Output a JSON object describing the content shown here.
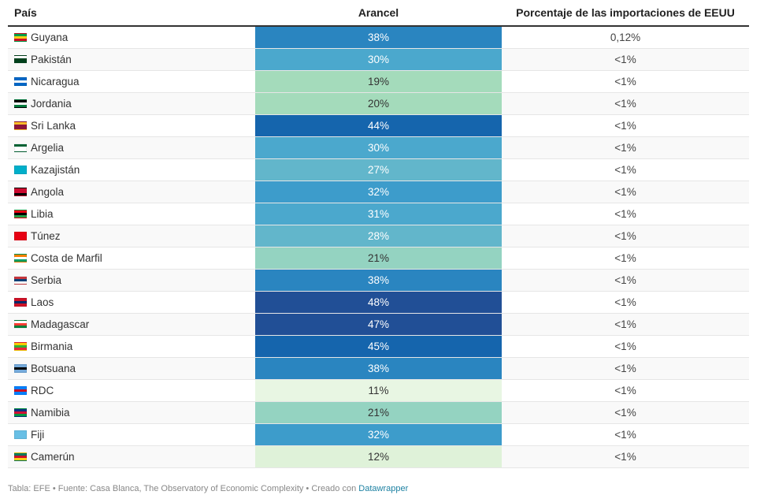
{
  "chart_data": {
    "type": "table",
    "columns": [
      "País",
      "Arancel",
      "Porcentaje de las importaciones de EEUU"
    ],
    "rows": [
      {
        "country": "Guyana",
        "tariff": "38%",
        "value": 38,
        "share": "0,12%",
        "flag_colors": [
          "#009e49",
          "#fcd116",
          "#ce1126"
        ]
      },
      {
        "country": "Pakistán",
        "tariff": "30%",
        "value": 30,
        "share": "<1%",
        "flag_colors": [
          "#ffffff",
          "#01411c",
          "#01411c"
        ]
      },
      {
        "country": "Nicaragua",
        "tariff": "19%",
        "value": 19,
        "share": "<1%",
        "flag_colors": [
          "#0067c6",
          "#ffffff",
          "#0067c6"
        ]
      },
      {
        "country": "Jordania",
        "tariff": "20%",
        "value": 20,
        "share": "<1%",
        "flag_colors": [
          "#000000",
          "#ffffff",
          "#007a3d"
        ]
      },
      {
        "country": "Sri Lanka",
        "tariff": "44%",
        "value": 44,
        "share": "<1%",
        "flag_colors": [
          "#ffbe29",
          "#8d153a",
          "#8d153a"
        ]
      },
      {
        "country": "Argelia",
        "tariff": "30%",
        "value": 30,
        "share": "<1%",
        "flag_colors": [
          "#006233",
          "#ffffff",
          "#ffffff"
        ]
      },
      {
        "country": "Kazajistán",
        "tariff": "27%",
        "value": 27,
        "share": "<1%",
        "flag_colors": [
          "#00afca",
          "#00afca",
          "#00afca"
        ]
      },
      {
        "country": "Angola",
        "tariff": "32%",
        "value": 32,
        "share": "<1%",
        "flag_colors": [
          "#cc092f",
          "#cc092f",
          "#000000"
        ]
      },
      {
        "country": "Libia",
        "tariff": "31%",
        "value": 31,
        "share": "<1%",
        "flag_colors": [
          "#e70013",
          "#000000",
          "#239e46"
        ]
      },
      {
        "country": "Túnez",
        "tariff": "28%",
        "value": 28,
        "share": "<1%",
        "flag_colors": [
          "#e70013",
          "#e70013",
          "#e70013"
        ]
      },
      {
        "country": "Costa de Marfil",
        "tariff": "21%",
        "value": 21,
        "share": "<1%",
        "flag_colors": [
          "#f77f00",
          "#ffffff",
          "#009e60"
        ]
      },
      {
        "country": "Serbia",
        "tariff": "38%",
        "value": 38,
        "share": "<1%",
        "flag_colors": [
          "#c6363c",
          "#0c4076",
          "#ffffff"
        ]
      },
      {
        "country": "Laos",
        "tariff": "48%",
        "value": 48,
        "share": "<1%",
        "flag_colors": [
          "#ce1126",
          "#002868",
          "#ce1126"
        ]
      },
      {
        "country": "Madagascar",
        "tariff": "47%",
        "value": 47,
        "share": "<1%",
        "flag_colors": [
          "#ffffff",
          "#fc3d32",
          "#007e3a"
        ]
      },
      {
        "country": "Birmania",
        "tariff": "45%",
        "value": 45,
        "share": "<1%",
        "flag_colors": [
          "#fecb00",
          "#34b233",
          "#ea2839"
        ]
      },
      {
        "country": "Botsuana",
        "tariff": "38%",
        "value": 38,
        "share": "<1%",
        "flag_colors": [
          "#75aadb",
          "#000000",
          "#75aadb"
        ]
      },
      {
        "country": "RDC",
        "tariff": "11%",
        "value": 11,
        "share": "<1%",
        "flag_colors": [
          "#007fff",
          "#ce1021",
          "#007fff"
        ]
      },
      {
        "country": "Namibia",
        "tariff": "21%",
        "value": 21,
        "share": "<1%",
        "flag_colors": [
          "#003580",
          "#d21034",
          "#009543"
        ]
      },
      {
        "country": "Fiji",
        "tariff": "32%",
        "value": 32,
        "share": "<1%",
        "flag_colors": [
          "#68bfe5",
          "#68bfe5",
          "#68bfe5"
        ]
      },
      {
        "country": "Camerún",
        "tariff": "12%",
        "value": 12,
        "share": "<1%",
        "flag_colors": [
          "#007a5e",
          "#ce1126",
          "#fcd116"
        ]
      }
    ],
    "color_scale": {
      "stops": [
        {
          "value": 11,
          "color": "#e8f6e3"
        },
        {
          "value": 12,
          "color": "#dff2d9"
        },
        {
          "value": 19,
          "color": "#a4dbbb"
        },
        {
          "value": 21,
          "color": "#94d3c1"
        },
        {
          "value": 27,
          "color": "#62b6cb"
        },
        {
          "value": 30,
          "color": "#4ba8cd"
        },
        {
          "value": 32,
          "color": "#3d9ccb"
        },
        {
          "value": 38,
          "color": "#2a85c0"
        },
        {
          "value": 44,
          "color": "#1565ad"
        },
        {
          "value": 48,
          "color": "#214f96"
        }
      ]
    }
  },
  "footer": {
    "text": "Tabla: EFE • Fuente: Casa Blanca, The Observatory of Economic Complexity • Creado con ",
    "link": "Datawrapper"
  }
}
